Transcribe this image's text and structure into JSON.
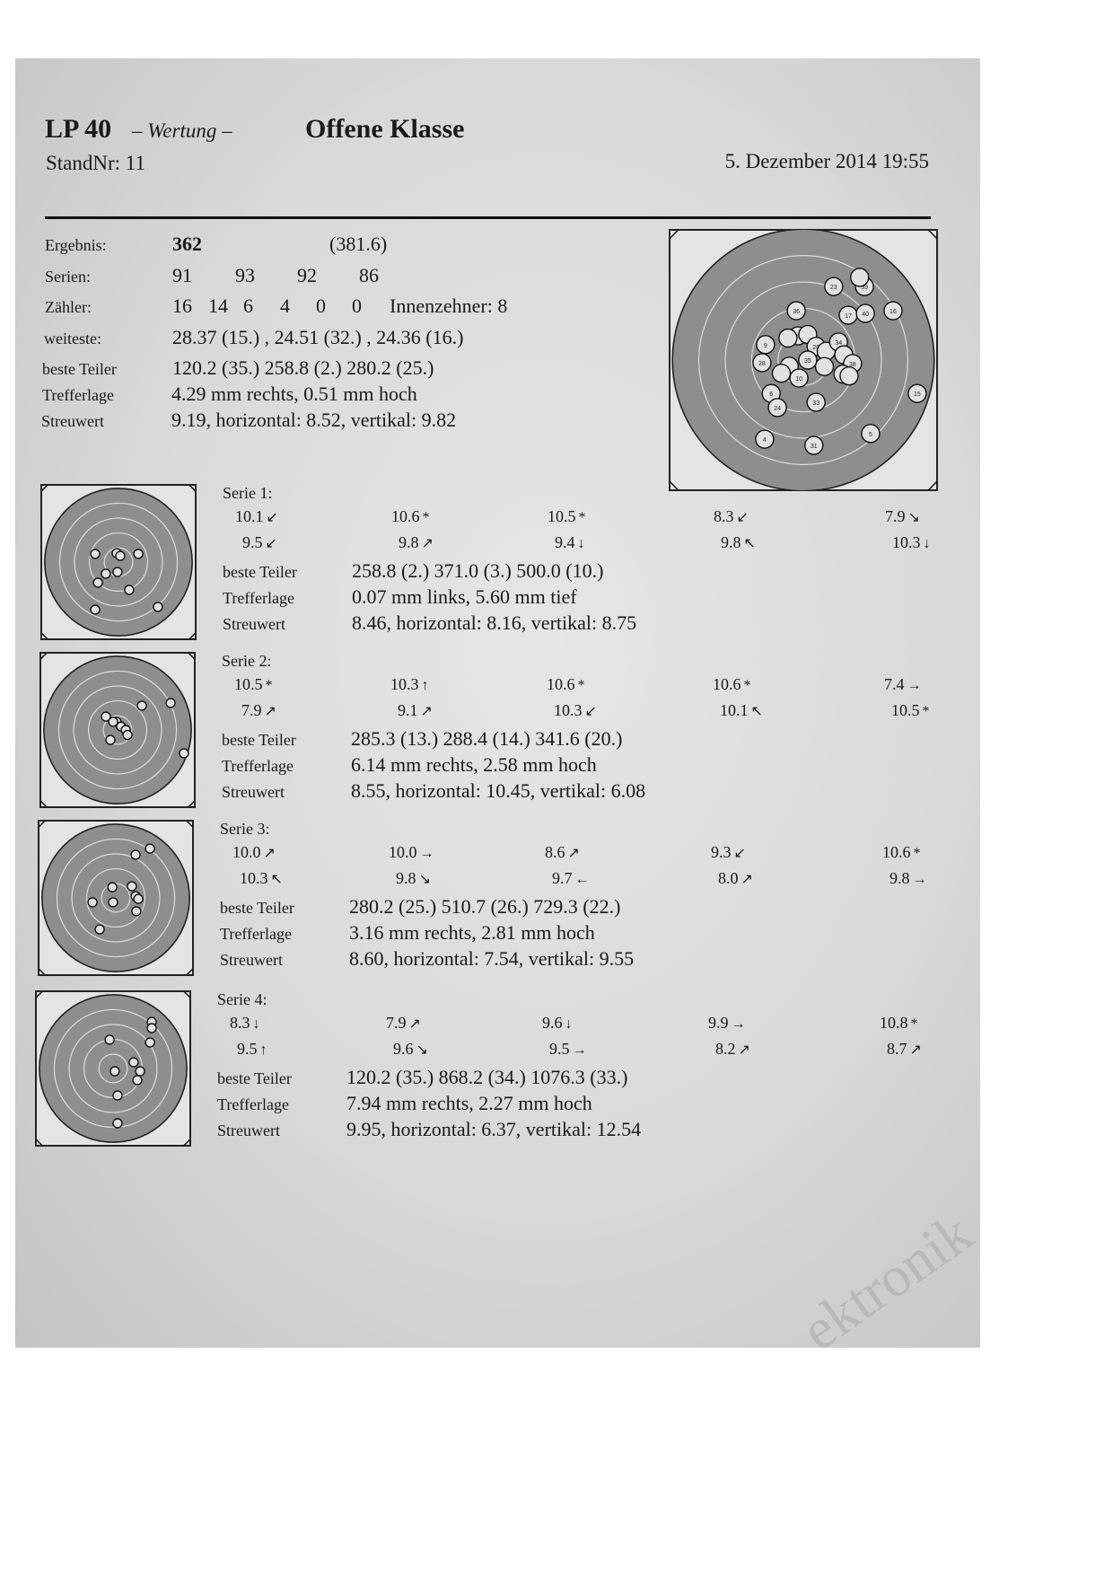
{
  "header": {
    "discipline": "LP 40",
    "mode": "– Wertung –",
    "class": "Offene Klasse",
    "stand": "StandNr: 11",
    "datetime": "5. Dezember 2014  19:55"
  },
  "summary": {
    "ergebnis_label": "Ergebnis:",
    "ergebnis": "362",
    "ergebnis_decimal": "(381.6)",
    "serien_label": "Serien:",
    "serien": [
      "91",
      "93",
      "92",
      "86"
    ],
    "zaehler_label": "Zähler:",
    "zaehler": [
      "16",
      "14",
      "6",
      "4",
      "0",
      "0"
    ],
    "innenzehner": "Innenzehner: 8",
    "weiteste_label": "weiteste:",
    "weiteste": "28.37 (15.) , 24.51 (32.) , 24.36 (16.)",
    "teiler_label": "beste Teiler",
    "teiler": "120.2 (35.)  258.8 (2.)  280.2 (25.)",
    "trefferlage_label": "Trefferlage",
    "trefferlage": "4.29 mm rechts,  0.51 mm hoch",
    "streuwert_label": "Streuwert",
    "streuwert": "9.19,  horizontal: 8.52,  vertikal: 9.82"
  },
  "overall_target": {
    "unit": "mm",
    "shots": [
      {
        "n": "23",
        "x": 6.9,
        "y": 16.7
      },
      {
        "n": "39",
        "x": 13.9,
        "y": 16.7
      },
      {
        "n": "",
        "x": 12.8,
        "y": 18.8
      },
      {
        "n": "36",
        "x": -1.6,
        "y": 11.2
      },
      {
        "n": "17",
        "x": 10.2,
        "y": 10.2
      },
      {
        "n": "40",
        "x": 14.1,
        "y": 10.6
      },
      {
        "n": "16",
        "x": 20.4,
        "y": 11.2
      },
      {
        "n": "9",
        "x": -8.6,
        "y": 3.5
      },
      {
        "n": "28",
        "x": -9.4,
        "y": -0.6
      },
      {
        "n": "26",
        "x": -1.2,
        "y": 5.5
      },
      {
        "n": "",
        "x": -3.5,
        "y": 5.0
      },
      {
        "n": "",
        "x": 1.0,
        "y": 5.8
      },
      {
        "n": "20",
        "x": 2.9,
        "y": 3.1
      },
      {
        "n": "",
        "x": 5.2,
        "y": 2.0
      },
      {
        "n": "34",
        "x": 8.0,
        "y": 4.1
      },
      {
        "n": "",
        "x": 9.2,
        "y": 1.2
      },
      {
        "n": "35",
        "x": 1.0,
        "y": 0.0
      },
      {
        "n": "",
        "x": -3.2,
        "y": -1.4
      },
      {
        "n": "",
        "x": -5.0,
        "y": -3.0
      },
      {
        "n": "",
        "x": 4.8,
        "y": -1.5
      },
      {
        "n": "38",
        "x": 11.2,
        "y": -0.8
      },
      {
        "n": "",
        "x": 9.0,
        "y": -3.2
      },
      {
        "n": "",
        "x": 10.4,
        "y": -3.6
      },
      {
        "n": "10",
        "x": -1.0,
        "y": -4.1
      },
      {
        "n": "6",
        "x": -7.3,
        "y": -7.6
      },
      {
        "n": "24",
        "x": -5.9,
        "y": -10.8
      },
      {
        "n": "33",
        "x": 2.9,
        "y": -9.6
      },
      {
        "n": "15",
        "x": 25.9,
        "y": -7.6
      },
      {
        "n": "5",
        "x": 15.3,
        "y": -16.7
      },
      {
        "n": "4",
        "x": -8.8,
        "y": -18.0
      },
      {
        "n": "31",
        "x": 2.4,
        "y": -19.4
      }
    ]
  },
  "series": [
    {
      "label": "Serie 1:",
      "shots": [
        [
          "10.1",
          "↙"
        ],
        [
          "10.6",
          "*"
        ],
        [
          "10.5",
          "*"
        ],
        [
          "8.3",
          "↙"
        ],
        [
          "7.9",
          "↘"
        ],
        [
          "9.5",
          "↙"
        ],
        [
          "9.8",
          "↗"
        ],
        [
          "9.4",
          "↓"
        ],
        [
          "9.8",
          "↖"
        ],
        [
          "10.3",
          "↓"
        ]
      ],
      "teiler_label": "beste Teiler",
      "teiler": "258.8 (2.)  371.0 (3.)  500.0 (10.)",
      "trefferlage_label": "Trefferlage",
      "trefferlage": "0.07 mm links,  5.60 mm tief",
      "streuwert_label": "Streuwert",
      "streuwert": "8.46,  horizontal: 8.16,  vertikal: 8.75",
      "hits": [
        [
          -9.4,
          3.3
        ],
        [
          -0.7,
          3.6
        ],
        [
          0.7,
          2.5
        ],
        [
          8,
          3.3
        ],
        [
          -5.1,
          -4.7
        ],
        [
          -0.4,
          -4
        ],
        [
          -8.3,
          -8.3
        ],
        [
          4.3,
          -11.2
        ],
        [
          -9.4,
          -19.2
        ],
        [
          15.9,
          -18.1
        ]
      ]
    },
    {
      "label": "Serie 2:",
      "shots": [
        [
          "10.5",
          "*"
        ],
        [
          "10.3",
          "↑"
        ],
        [
          "10.6",
          "*"
        ],
        [
          "10.6",
          "*"
        ],
        [
          "7.4",
          "→"
        ],
        [
          "7.9",
          "↗"
        ],
        [
          "9.1",
          "↗"
        ],
        [
          "10.3",
          "↙"
        ],
        [
          "10.1",
          "↖"
        ],
        [
          "10.5",
          "*"
        ]
      ],
      "teiler_label": "beste Teiler",
      "teiler": "285.3 (13.)  288.4 (14.)  341.6 (20.)",
      "trefferlage_label": "Trefferlage",
      "trefferlage": "6.14 mm rechts,  2.58 mm hoch",
      "streuwert_label": "Streuwert",
      "streuwert": "8.55,  horizontal: 10.45,  vertikal: 6.08",
      "hits": [
        [
          9.8,
          9.8
        ],
        [
          21.4,
          10.9
        ],
        [
          -4.7,
          5.4
        ],
        [
          -0.4,
          3.3
        ],
        [
          1.4,
          1.4
        ],
        [
          3.3,
          0
        ],
        [
          -2.9,
          -4
        ],
        [
          26.8,
          -9.4
        ],
        [
          -1.8,
          3.3
        ],
        [
          4,
          -2
        ]
      ]
    },
    {
      "label": "Serie 3:",
      "shots": [
        [
          "10.0",
          "↗"
        ],
        [
          "10.0",
          "→"
        ],
        [
          "8.6",
          "↗"
        ],
        [
          "9.3",
          "↙"
        ],
        [
          "10.6",
          "*"
        ],
        [
          "10.3",
          "↖"
        ],
        [
          "9.8",
          "↘"
        ],
        [
          "9.7",
          "←"
        ],
        [
          "8.0",
          "↗"
        ],
        [
          "9.8",
          "→"
        ]
      ],
      "teiler_label": "beste Teiler",
      "teiler": "280.2 (25.)  510.7 (26.)  729.3 (22.)",
      "trefferlage_label": "Trefferlage",
      "trefferlage": "3.16 mm rechts,  2.81 mm hoch",
      "streuwert_label": "Streuwert",
      "streuwert": "8.60,  horizontal: 7.54,  vertikal: 9.55",
      "hits": [
        [
          8,
          17.4
        ],
        [
          13.8,
          19.9
        ],
        [
          -1.4,
          4.3
        ],
        [
          6.5,
          4.7
        ],
        [
          -9.4,
          -1.8
        ],
        [
          -1.1,
          -1.8
        ],
        [
          8,
          0.7
        ],
        [
          9.1,
          -0.4
        ],
        [
          8.3,
          -5.4
        ],
        [
          -6.5,
          -12.7
        ]
      ]
    },
    {
      "label": "Serie 4:",
      "shots": [
        [
          "8.3",
          "↓"
        ],
        [
          "7.9",
          "↗"
        ],
        [
          "9.6",
          "↓"
        ],
        [
          "9.9",
          "→"
        ],
        [
          "10.8",
          "*"
        ],
        [
          "9.5",
          "↑"
        ],
        [
          "9.6",
          "↘"
        ],
        [
          "9.5",
          "→"
        ],
        [
          "8.2",
          "↗"
        ],
        [
          "8.7",
          "↗"
        ]
      ],
      "teiler_label": "beste Teiler",
      "teiler": "120.2 (35.)  868.2 (34.)  1076.3 (33.)",
      "trefferlage_label": "Trefferlage",
      "trefferlage": "7.94 mm rechts,  2.27 mm hoch",
      "streuwert_label": "Streuwert",
      "streuwert": "9.95,  horizontal: 6.37,  vertikal: 12.54",
      "hits": [
        [
          15.6,
          18.8
        ],
        [
          15.6,
          16.3
        ],
        [
          14.9,
          10.5
        ],
        [
          -1.4,
          11.6
        ],
        [
          8.3,
          2.5
        ],
        [
          0.7,
          -1.1
        ],
        [
          10.9,
          -1.1
        ],
        [
          9.8,
          -4.7
        ],
        [
          1.8,
          -10.9
        ],
        [
          1.8,
          -22.1
        ]
      ]
    }
  ],
  "watermark": "ektronik",
  "colors": {
    "paper": "#d9d9d9",
    "target_black": "#8c8c8c",
    "ink": "#1a1a1a"
  }
}
